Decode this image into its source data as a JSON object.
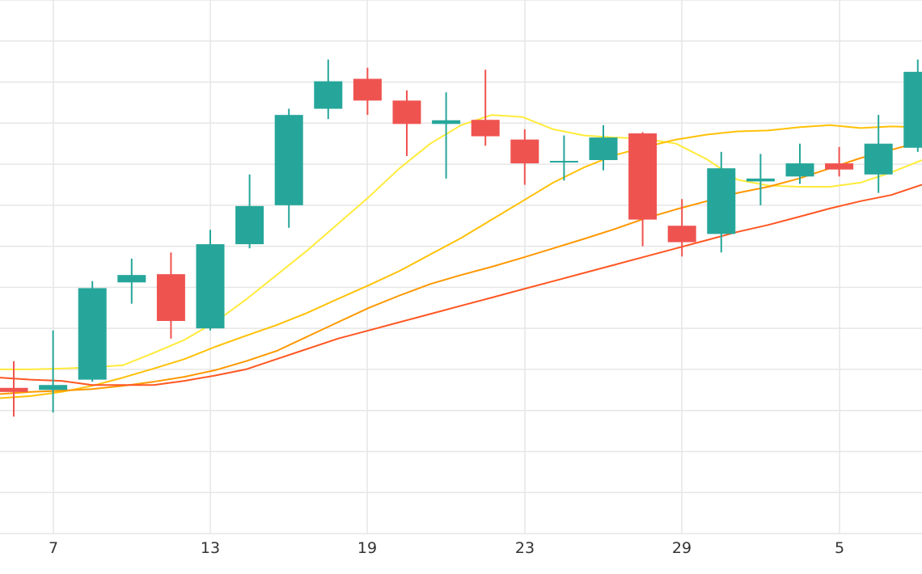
{
  "chart_data": {
    "type": "candlestick",
    "x_axis": {
      "tick_labels": [
        "7",
        "13",
        "19",
        "23",
        "29",
        "5"
      ]
    },
    "colors": {
      "up": "#26a69a",
      "down": "#ef5350",
      "grid": "#e6e6e6",
      "text": "#333333"
    },
    "y_domain": [
      0,
      13
    ],
    "grid": true,
    "candles": [
      {
        "o": 3.55,
        "h": 4.2,
        "l": 2.85,
        "c": 3.45
      },
      {
        "o": 3.5,
        "h": 4.95,
        "l": 2.95,
        "c": 3.62
      },
      {
        "o": 3.75,
        "h": 6.15,
        "l": 3.7,
        "c": 5.98
      },
      {
        "o": 6.12,
        "h": 6.7,
        "l": 5.6,
        "c": 6.3
      },
      {
        "o": 6.32,
        "h": 6.85,
        "l": 4.75,
        "c": 5.18
      },
      {
        "o": 5.0,
        "h": 7.4,
        "l": 4.95,
        "c": 7.05
      },
      {
        "o": 7.05,
        "h": 8.75,
        "l": 6.95,
        "c": 7.98
      },
      {
        "o": 8.0,
        "h": 10.35,
        "l": 7.45,
        "c": 10.2
      },
      {
        "o": 10.35,
        "h": 11.55,
        "l": 10.1,
        "c": 11.02
      },
      {
        "o": 11.08,
        "h": 11.35,
        "l": 10.2,
        "c": 10.55
      },
      {
        "o": 10.55,
        "h": 10.8,
        "l": 9.2,
        "c": 9.98
      },
      {
        "o": 9.98,
        "h": 10.75,
        "l": 8.65,
        "c": 10.07
      },
      {
        "o": 10.08,
        "h": 11.3,
        "l": 9.45,
        "c": 9.68
      },
      {
        "o": 9.6,
        "h": 9.85,
        "l": 8.5,
        "c": 9.02
      },
      {
        "o": 9.05,
        "h": 9.7,
        "l": 8.6,
        "c": 9.08
      },
      {
        "o": 9.1,
        "h": 9.95,
        "l": 8.85,
        "c": 9.65
      },
      {
        "o": 9.75,
        "h": 9.78,
        "l": 7.0,
        "c": 7.65
      },
      {
        "o": 7.5,
        "h": 8.15,
        "l": 6.75,
        "c": 7.1
      },
      {
        "o": 7.3,
        "h": 9.3,
        "l": 6.85,
        "c": 8.9
      },
      {
        "o": 8.58,
        "h": 9.25,
        "l": 8.0,
        "c": 8.65
      },
      {
        "o": 8.7,
        "h": 9.5,
        "l": 8.52,
        "c": 9.02
      },
      {
        "o": 9.02,
        "h": 9.42,
        "l": 8.7,
        "c": 8.87
      },
      {
        "o": 8.75,
        "h": 10.2,
        "l": 8.3,
        "c": 9.5
      },
      {
        "o": 9.4,
        "h": 11.55,
        "l": 9.3,
        "c": 11.25
      }
    ],
    "moving_averages": [
      {
        "color": "#ffeb3b",
        "values": [
          4.0,
          4.0,
          4.02,
          4.05,
          4.1,
          4.4,
          4.72,
          5.15,
          5.7,
          6.3,
          6.9,
          7.55,
          8.2,
          8.9,
          9.5,
          9.95,
          10.2,
          10.15,
          9.85,
          9.7,
          9.65,
          9.62,
          9.5,
          9.12,
          8.62,
          8.48,
          8.45,
          8.45,
          8.55,
          8.8,
          9.1
        ]
      },
      {
        "color": "#ffc107",
        "values": [
          3.3,
          3.35,
          3.45,
          3.6,
          3.8,
          4.02,
          4.25,
          4.55,
          4.82,
          5.08,
          5.38,
          5.72,
          6.05,
          6.4,
          6.8,
          7.2,
          7.65,
          8.1,
          8.55,
          8.92,
          9.22,
          9.42,
          9.6,
          9.72,
          9.8,
          9.82,
          9.9,
          9.95,
          9.88,
          9.92,
          9.9
        ]
      },
      {
        "color": "#ff9800",
        "values": [
          3.4,
          3.45,
          3.48,
          3.52,
          3.6,
          3.7,
          3.82,
          3.98,
          4.2,
          4.45,
          4.8,
          5.15,
          5.5,
          5.8,
          6.08,
          6.3,
          6.5,
          6.72,
          6.95,
          7.18,
          7.42,
          7.68,
          7.9,
          8.1,
          8.3,
          8.45,
          8.65,
          8.9,
          9.15,
          9.35,
          9.55
        ]
      },
      {
        "color": "#ff5722",
        "values": [
          3.8,
          3.75,
          3.72,
          3.62,
          3.62,
          3.62,
          3.72,
          3.85,
          4.0,
          4.25,
          4.5,
          4.75,
          4.95,
          5.15,
          5.35,
          5.55,
          5.75,
          5.95,
          6.15,
          6.35,
          6.55,
          6.75,
          6.95,
          7.15,
          7.35,
          7.52,
          7.72,
          7.92,
          8.1,
          8.25,
          8.5
        ]
      }
    ]
  }
}
